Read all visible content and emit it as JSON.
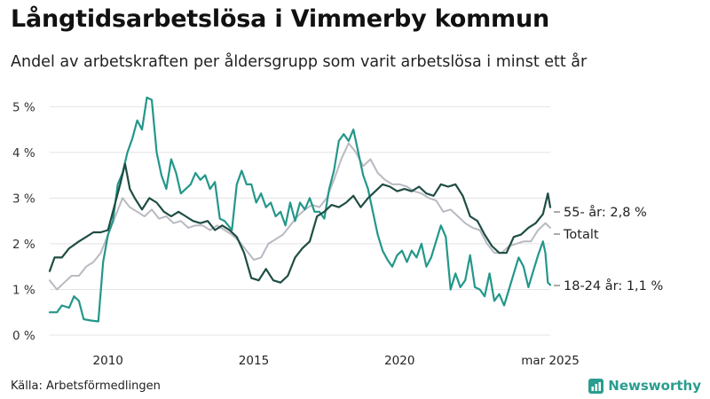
{
  "chart_data": {
    "type": "line",
    "title": "Långtidsarbetslösa i Vimmerby kommun",
    "subtitle": "Andel av arbetskraften per åldersgrupp som varit arbetslösa i minst ett år",
    "xlabel": "",
    "ylabel": "",
    "xlim": [
      "2008-01",
      "2025-03"
    ],
    "ylim": [
      0,
      5.2
    ],
    "x_ticks": [
      "2010",
      "2015",
      "2020",
      "mar 2025"
    ],
    "y_ticks": [
      "0 %",
      "1 %",
      "2 %",
      "3 %",
      "4 %",
      "5 %"
    ],
    "grid": true,
    "legend": "direct labels at right end of lines",
    "series": [
      {
        "name": "55- år",
        "end_label": "55- år: 2,8 %",
        "color": "#1e4d43",
        "points": [
          [
            "2008-01",
            1.4
          ],
          [
            "2008-03",
            1.7
          ],
          [
            "2008-06",
            1.7
          ],
          [
            "2008-09",
            1.9
          ],
          [
            "2009-01",
            2.05
          ],
          [
            "2009-04",
            2.15
          ],
          [
            "2009-07",
            2.25
          ],
          [
            "2009-10",
            2.25
          ],
          [
            "2010-01",
            2.3
          ],
          [
            "2010-03",
            2.7
          ],
          [
            "2010-06",
            3.3
          ],
          [
            "2010-08",
            3.75
          ],
          [
            "2010-10",
            3.2
          ],
          [
            "2010-12",
            3.0
          ],
          [
            "2011-03",
            2.75
          ],
          [
            "2011-06",
            3.0
          ],
          [
            "2011-09",
            2.9
          ],
          [
            "2011-12",
            2.7
          ],
          [
            "2012-03",
            2.6
          ],
          [
            "2012-06",
            2.7
          ],
          [
            "2012-09",
            2.6
          ],
          [
            "2012-12",
            2.5
          ],
          [
            "2013-03",
            2.45
          ],
          [
            "2013-06",
            2.5
          ],
          [
            "2013-09",
            2.3
          ],
          [
            "2013-12",
            2.4
          ],
          [
            "2014-03",
            2.3
          ],
          [
            "2014-06",
            2.15
          ],
          [
            "2014-09",
            1.8
          ],
          [
            "2014-12",
            1.25
          ],
          [
            "2015-03",
            1.2
          ],
          [
            "2015-06",
            1.45
          ],
          [
            "2015-09",
            1.2
          ],
          [
            "2015-12",
            1.15
          ],
          [
            "2016-03",
            1.3
          ],
          [
            "2016-06",
            1.7
          ],
          [
            "2016-09",
            1.9
          ],
          [
            "2016-12",
            2.05
          ],
          [
            "2017-03",
            2.6
          ],
          [
            "2017-06",
            2.7
          ],
          [
            "2017-09",
            2.85
          ],
          [
            "2017-12",
            2.8
          ],
          [
            "2018-03",
            2.9
          ],
          [
            "2018-06",
            3.05
          ],
          [
            "2018-09",
            2.8
          ],
          [
            "2018-12",
            3.0
          ],
          [
            "2019-03",
            3.15
          ],
          [
            "2019-06",
            3.3
          ],
          [
            "2019-09",
            3.25
          ],
          [
            "2019-12",
            3.15
          ],
          [
            "2020-03",
            3.2
          ],
          [
            "2020-06",
            3.15
          ],
          [
            "2020-09",
            3.25
          ],
          [
            "2020-12",
            3.1
          ],
          [
            "2021-03",
            3.05
          ],
          [
            "2021-06",
            3.3
          ],
          [
            "2021-09",
            3.25
          ],
          [
            "2021-12",
            3.3
          ],
          [
            "2022-03",
            3.05
          ],
          [
            "2022-06",
            2.6
          ],
          [
            "2022-09",
            2.5
          ],
          [
            "2022-12",
            2.2
          ],
          [
            "2023-03",
            1.95
          ],
          [
            "2023-06",
            1.8
          ],
          [
            "2023-09",
            1.8
          ],
          [
            "2023-12",
            2.15
          ],
          [
            "2024-03",
            2.2
          ],
          [
            "2024-06",
            2.35
          ],
          [
            "2024-09",
            2.45
          ],
          [
            "2024-12",
            2.65
          ],
          [
            "2025-02",
            3.1
          ],
          [
            "2025-03",
            2.8
          ]
        ]
      },
      {
        "name": "Totalt",
        "end_label": "Totalt",
        "color": "#b9b9c3",
        "points": [
          [
            "2008-01",
            1.2
          ],
          [
            "2008-04",
            1.0
          ],
          [
            "2008-07",
            1.15
          ],
          [
            "2008-10",
            1.3
          ],
          [
            "2009-01",
            1.3
          ],
          [
            "2009-04",
            1.5
          ],
          [
            "2009-07",
            1.6
          ],
          [
            "2009-10",
            1.8
          ],
          [
            "2010-01",
            2.2
          ],
          [
            "2010-04",
            2.6
          ],
          [
            "2010-07",
            3.0
          ],
          [
            "2010-10",
            2.8
          ],
          [
            "2011-01",
            2.7
          ],
          [
            "2011-04",
            2.6
          ],
          [
            "2011-07",
            2.75
          ],
          [
            "2011-10",
            2.55
          ],
          [
            "2012-01",
            2.6
          ],
          [
            "2012-04",
            2.45
          ],
          [
            "2012-07",
            2.5
          ],
          [
            "2012-10",
            2.35
          ],
          [
            "2013-01",
            2.4
          ],
          [
            "2013-04",
            2.4
          ],
          [
            "2013-07",
            2.3
          ],
          [
            "2013-10",
            2.4
          ],
          [
            "2014-01",
            2.3
          ],
          [
            "2014-04",
            2.2
          ],
          [
            "2014-07",
            2.05
          ],
          [
            "2014-10",
            1.85
          ],
          [
            "2015-01",
            1.65
          ],
          [
            "2015-04",
            1.7
          ],
          [
            "2015-07",
            2.0
          ],
          [
            "2015-10",
            2.1
          ],
          [
            "2016-01",
            2.2
          ],
          [
            "2016-04",
            2.4
          ],
          [
            "2016-07",
            2.6
          ],
          [
            "2016-10",
            2.75
          ],
          [
            "2017-01",
            2.85
          ],
          [
            "2017-04",
            2.8
          ],
          [
            "2017-07",
            3.0
          ],
          [
            "2017-10",
            3.4
          ],
          [
            "2018-01",
            3.85
          ],
          [
            "2018-04",
            4.2
          ],
          [
            "2018-07",
            4.0
          ],
          [
            "2018-10",
            3.7
          ],
          [
            "2019-01",
            3.85
          ],
          [
            "2019-04",
            3.55
          ],
          [
            "2019-07",
            3.4
          ],
          [
            "2019-10",
            3.3
          ],
          [
            "2020-01",
            3.3
          ],
          [
            "2020-04",
            3.25
          ],
          [
            "2020-07",
            3.15
          ],
          [
            "2020-10",
            3.1
          ],
          [
            "2021-01",
            3.0
          ],
          [
            "2021-04",
            2.95
          ],
          [
            "2021-07",
            2.7
          ],
          [
            "2021-10",
            2.75
          ],
          [
            "2022-01",
            2.6
          ],
          [
            "2022-04",
            2.45
          ],
          [
            "2022-07",
            2.35
          ],
          [
            "2022-10",
            2.3
          ],
          [
            "2023-01",
            2.0
          ],
          [
            "2023-04",
            1.8
          ],
          [
            "2023-07",
            1.8
          ],
          [
            "2023-10",
            1.95
          ],
          [
            "2024-01",
            2.0
          ],
          [
            "2024-04",
            2.05
          ],
          [
            "2024-07",
            2.05
          ],
          [
            "2024-10",
            2.3
          ],
          [
            "2025-01",
            2.45
          ],
          [
            "2025-03",
            2.35
          ]
        ]
      },
      {
        "name": "18-24 år",
        "end_label": "18-24 år: 1,1 %",
        "color": "#23978a",
        "points": [
          [
            "2008-01",
            0.5
          ],
          [
            "2008-04",
            0.5
          ],
          [
            "2008-06",
            0.65
          ],
          [
            "2008-09",
            0.6
          ],
          [
            "2008-11",
            0.85
          ],
          [
            "2009-01",
            0.75
          ],
          [
            "2009-03",
            0.35
          ],
          [
            "2009-06",
            0.32
          ],
          [
            "2009-09",
            0.3
          ],
          [
            "2009-11",
            1.6
          ],
          [
            "2010-01",
            2.2
          ],
          [
            "2010-03",
            2.5
          ],
          [
            "2010-05",
            3.3
          ],
          [
            "2010-07",
            3.55
          ],
          [
            "2010-09",
            4.0
          ],
          [
            "2010-11",
            4.3
          ],
          [
            "2011-01",
            4.7
          ],
          [
            "2011-03",
            4.5
          ],
          [
            "2011-05",
            5.2
          ],
          [
            "2011-07",
            5.15
          ],
          [
            "2011-09",
            4.0
          ],
          [
            "2011-11",
            3.5
          ],
          [
            "2012-01",
            3.2
          ],
          [
            "2012-03",
            3.85
          ],
          [
            "2012-05",
            3.55
          ],
          [
            "2012-07",
            3.1
          ],
          [
            "2012-09",
            3.2
          ],
          [
            "2012-11",
            3.3
          ],
          [
            "2013-01",
            3.55
          ],
          [
            "2013-03",
            3.4
          ],
          [
            "2013-05",
            3.5
          ],
          [
            "2013-07",
            3.2
          ],
          [
            "2013-09",
            3.35
          ],
          [
            "2013-11",
            2.55
          ],
          [
            "2014-01",
            2.5
          ],
          [
            "2014-04",
            2.3
          ],
          [
            "2014-06",
            3.3
          ],
          [
            "2014-08",
            3.6
          ],
          [
            "2014-10",
            3.3
          ],
          [
            "2014-12",
            3.3
          ],
          [
            "2015-02",
            2.9
          ],
          [
            "2015-04",
            3.1
          ],
          [
            "2015-06",
            2.8
          ],
          [
            "2015-08",
            2.9
          ],
          [
            "2015-10",
            2.6
          ],
          [
            "2015-12",
            2.7
          ],
          [
            "2016-02",
            2.4
          ],
          [
            "2016-04",
            2.9
          ],
          [
            "2016-06",
            2.5
          ],
          [
            "2016-08",
            2.9
          ],
          [
            "2016-10",
            2.75
          ],
          [
            "2016-12",
            3.0
          ],
          [
            "2017-02",
            2.7
          ],
          [
            "2017-04",
            2.7
          ],
          [
            "2017-06",
            2.55
          ],
          [
            "2017-08",
            3.2
          ],
          [
            "2017-10",
            3.6
          ],
          [
            "2017-12",
            4.25
          ],
          [
            "2018-02",
            4.4
          ],
          [
            "2018-04",
            4.25
          ],
          [
            "2018-06",
            4.5
          ],
          [
            "2018-08",
            4.0
          ],
          [
            "2018-10",
            3.5
          ],
          [
            "2018-12",
            3.2
          ],
          [
            "2019-02",
            2.7
          ],
          [
            "2019-04",
            2.2
          ],
          [
            "2019-06",
            1.85
          ],
          [
            "2019-08",
            1.65
          ],
          [
            "2019-10",
            1.5
          ],
          [
            "2019-12",
            1.75
          ],
          [
            "2020-02",
            1.85
          ],
          [
            "2020-04",
            1.6
          ],
          [
            "2020-06",
            1.85
          ],
          [
            "2020-08",
            1.7
          ],
          [
            "2020-10",
            2.0
          ],
          [
            "2020-12",
            1.5
          ],
          [
            "2021-02",
            1.7
          ],
          [
            "2021-04",
            2.05
          ],
          [
            "2021-06",
            2.4
          ],
          [
            "2021-08",
            2.15
          ],
          [
            "2021-10",
            1.0
          ],
          [
            "2021-12",
            1.35
          ],
          [
            "2022-02",
            1.05
          ],
          [
            "2022-04",
            1.2
          ],
          [
            "2022-06",
            1.75
          ],
          [
            "2022-08",
            1.05
          ],
          [
            "2022-10",
            1.0
          ],
          [
            "2022-12",
            0.85
          ],
          [
            "2023-02",
            1.35
          ],
          [
            "2023-04",
            0.75
          ],
          [
            "2023-06",
            0.9
          ],
          [
            "2023-08",
            0.65
          ],
          [
            "2023-10",
            1.0
          ],
          [
            "2023-12",
            1.35
          ],
          [
            "2024-02",
            1.7
          ],
          [
            "2024-04",
            1.5
          ],
          [
            "2024-06",
            1.05
          ],
          [
            "2024-08",
            1.4
          ],
          [
            "2024-10",
            1.75
          ],
          [
            "2024-12",
            2.05
          ],
          [
            "2025-01",
            1.8
          ],
          [
            "2025-02",
            1.15
          ],
          [
            "2025-03",
            1.1
          ]
        ]
      }
    ]
  },
  "source": "Källa: Arbetsförmedlingen",
  "brand": {
    "name": "Newsworthy",
    "color": "#2a9d8f",
    "icon": "bar-chart-icon"
  }
}
